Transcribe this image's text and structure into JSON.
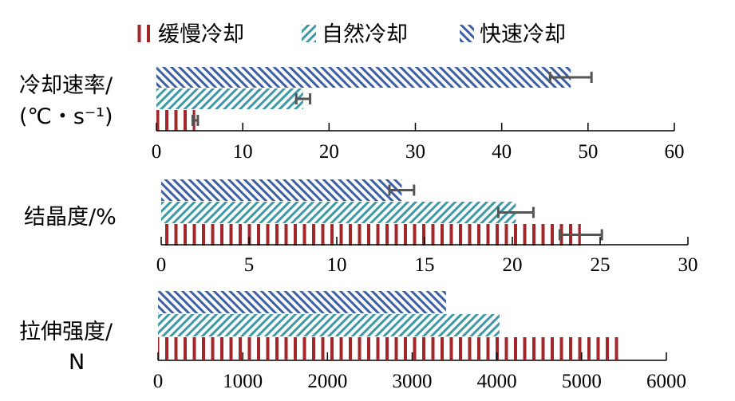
{
  "legend": [
    {
      "key": "slow",
      "label": "缓慢冷却"
    },
    {
      "key": "natural",
      "label": "自然冷却"
    },
    {
      "key": "fast",
      "label": "快速冷却"
    }
  ],
  "colors": {
    "slow": "#a3262a",
    "natural": "#3f9aa6",
    "fast": "#3d5fa3",
    "error_bar": "#555555",
    "axis": "#000000"
  },
  "chart_data": [
    {
      "type": "bar",
      "orientation": "horizontal",
      "category_label": [
        "冷却速率/",
        "(℃・s⁻¹)"
      ],
      "xlim": [
        0,
        60
      ],
      "ticks": [
        0,
        10,
        20,
        30,
        40,
        50,
        60
      ],
      "series": [
        {
          "key": "fast",
          "name": "快速冷却",
          "value": 48,
          "error": 2.4
        },
        {
          "key": "natural",
          "name": "自然冷却",
          "value": 17,
          "error": 0.8
        },
        {
          "key": "slow",
          "name": "缓慢冷却",
          "value": 4.5,
          "error": 0.3
        }
      ]
    },
    {
      "type": "bar",
      "orientation": "horizontal",
      "category_label": [
        "结晶度/%"
      ],
      "xlim": [
        0,
        30
      ],
      "ticks": [
        0,
        5,
        10,
        15,
        20,
        25,
        30
      ],
      "series": [
        {
          "key": "fast",
          "name": "快速冷却",
          "value": 13.7,
          "error": 0.7
        },
        {
          "key": "natural",
          "name": "自然冷却",
          "value": 20.2,
          "error": 1.0
        },
        {
          "key": "slow",
          "name": "缓慢冷却",
          "value": 23.9,
          "error": 1.2
        }
      ]
    },
    {
      "type": "bar",
      "orientation": "horizontal",
      "category_label": [
        "拉伸强度/",
        "N"
      ],
      "xlim": [
        0,
        6000
      ],
      "ticks": [
        0,
        1000,
        2000,
        3000,
        4000,
        5000,
        6000
      ],
      "series": [
        {
          "key": "fast",
          "name": "快速冷却",
          "value": 3400,
          "error": 0
        },
        {
          "key": "natural",
          "name": "自然冷却",
          "value": 4030,
          "error": 0
        },
        {
          "key": "slow",
          "name": "缓慢冷却",
          "value": 5480,
          "error": 0
        }
      ]
    }
  ]
}
